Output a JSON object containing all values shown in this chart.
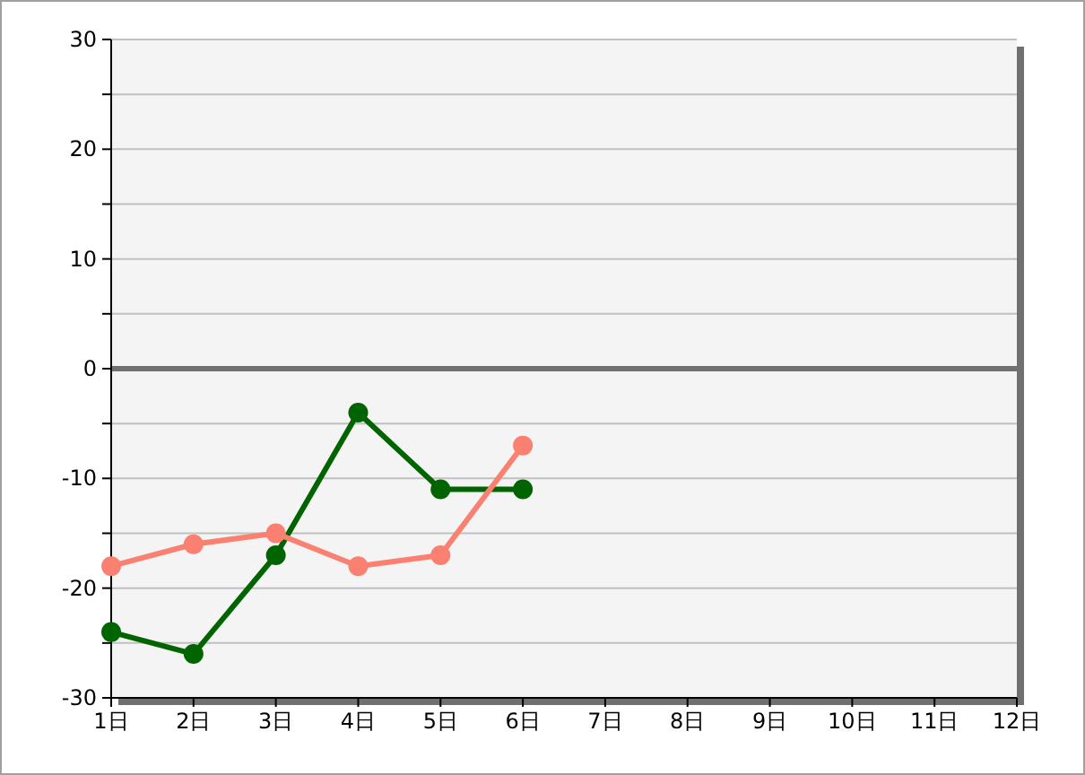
{
  "chart_data": {
    "type": "line",
    "x": [
      1,
      2,
      3,
      4,
      5,
      6
    ],
    "series": [
      {
        "color": "#006400",
        "values": [
          -24,
          -26,
          -17,
          -4,
          -11,
          -11
        ]
      },
      {
        "color": "#fa8072",
        "values": [
          -18,
          -16,
          -15,
          -18,
          -17,
          -7
        ]
      }
    ],
    "xlim": [
      1,
      12
    ],
    "xticks": [
      {
        "value": 1,
        "label": "1日"
      },
      {
        "value": 2,
        "label": "2日"
      },
      {
        "value": 3,
        "label": "3日"
      },
      {
        "value": 4,
        "label": "4日"
      },
      {
        "value": 5,
        "label": "5日"
      },
      {
        "value": 6,
        "label": "6日"
      },
      {
        "value": 7,
        "label": "7日"
      },
      {
        "value": 8,
        "label": "8日"
      },
      {
        "value": 9,
        "label": "9日"
      },
      {
        "value": 10,
        "label": "10日"
      },
      {
        "value": 11,
        "label": "11日"
      },
      {
        "value": 12,
        "label": "12日"
      }
    ],
    "ylim": [
      -30,
      30
    ],
    "yticks": [
      -30,
      {
        "value": -25,
        "label": null
      },
      -20,
      {
        "value": -15,
        "label": null
      },
      -10,
      {
        "value": -5,
        "label": null
      },
      0,
      {
        "value": 5,
        "label": null
      },
      10,
      {
        "value": 15,
        "label": null
      },
      20,
      {
        "value": 25,
        "label": null
      },
      30
    ],
    "grid": "y",
    "marker": "circle",
    "ref_lines": [
      {
        "axis": "y",
        "value": 0,
        "color": "#707070"
      }
    ]
  }
}
